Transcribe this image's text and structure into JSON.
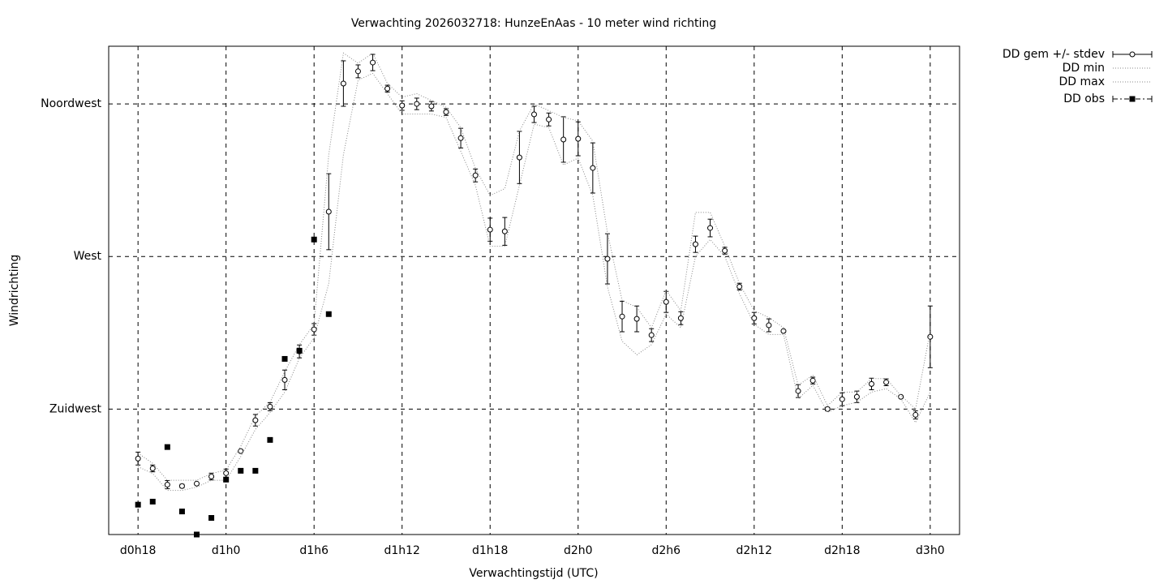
{
  "chart_data": {
    "type": "line",
    "title": "Verwachting 2026032718: HunzeEnAas - 10 meter wind richting",
    "xlabel": "Verwachtingstijd (UTC)",
    "ylabel": "Windrichting",
    "xlim": [
      16,
      74
    ],
    "ylim": [
      188,
      332
    ],
    "xticks": [
      {
        "value": 18,
        "label": "d0h18"
      },
      {
        "value": 24,
        "label": "d1h0"
      },
      {
        "value": 30,
        "label": "d1h6"
      },
      {
        "value": 36,
        "label": "d1h12"
      },
      {
        "value": 42,
        "label": "d1h18"
      },
      {
        "value": 48,
        "label": "d2h0"
      },
      {
        "value": 54,
        "label": "d2h6"
      },
      {
        "value": 60,
        "label": "d2h12"
      },
      {
        "value": 66,
        "label": "d2h18"
      },
      {
        "value": 72,
        "label": "d3h0"
      }
    ],
    "yticks": [
      {
        "value": 225,
        "label": "Zuidwest"
      },
      {
        "value": 270,
        "label": "West"
      },
      {
        "value": 315,
        "label": "Noordwest"
      }
    ],
    "grid": true,
    "legend": "outside-top-right",
    "x": [
      18,
      19,
      20,
      21,
      22,
      23,
      24,
      25,
      26,
      27,
      28,
      29,
      30,
      31,
      32,
      33,
      34,
      35,
      36,
      37,
      38,
      39,
      40,
      41,
      42,
      43,
      44,
      45,
      46,
      47,
      48,
      49,
      50,
      51,
      52,
      53,
      54,
      55,
      56,
      57,
      58,
      59,
      60,
      61,
      62,
      63,
      64,
      65,
      66,
      67,
      68,
      69,
      70,
      71,
      72
    ],
    "series": [
      {
        "name": "DD gem +/- stdev",
        "color": "#000000",
        "style": "errorbars",
        "values": [
          210.4,
          207.5,
          202.7,
          202.3,
          203.0,
          205.1,
          206.1,
          212.6,
          221.7,
          225.7,
          233.6,
          242.0,
          248.5,
          283.2,
          321.0,
          324.6,
          327.2,
          319.5,
          314.5,
          315.0,
          314.3,
          312.6,
          304.9,
          293.9,
          277.9,
          277.4,
          299.2,
          311.9,
          310.4,
          304.5,
          304.7,
          296.1,
          269.3,
          252.3,
          251.6,
          246.8,
          256.6,
          251.8,
          273.6,
          278.4,
          271.7,
          261.1,
          251.8,
          249.7,
          248.0,
          230.3,
          233.4,
          225.0,
          227.9,
          228.6,
          232.4,
          232.9,
          228.6,
          223.3,
          246.3
        ],
        "errors": [
          1.9,
          1.0,
          1.2,
          0.5,
          0.3,
          1.0,
          1.2,
          0.3,
          1.7,
          1.2,
          2.9,
          1.9,
          1.7,
          11.2,
          6.7,
          1.9,
          2.4,
          1.0,
          1.4,
          1.7,
          1.4,
          1.0,
          2.9,
          1.9,
          3.4,
          4.1,
          7.7,
          2.4,
          1.9,
          6.7,
          5.0,
          7.4,
          7.4,
          4.5,
          3.8,
          1.9,
          3.1,
          1.9,
          2.4,
          2.6,
          1.0,
          1.0,
          1.7,
          1.9,
          0.2,
          1.9,
          1.0,
          0.5,
          1.9,
          1.7,
          1.7,
          1.0,
          0.2,
          1.2,
          9.1
        ]
      },
      {
        "name": "DD min",
        "color": "#888888",
        "style": "dotted",
        "values": [
          208,
          206,
          201,
          201,
          202,
          204,
          204,
          211,
          219,
          224,
          230,
          240,
          246,
          262,
          300,
          322,
          324,
          318,
          312,
          312,
          312,
          311,
          301,
          291,
          273,
          273,
          291,
          309,
          308,
          297,
          299,
          288,
          261,
          245,
          241,
          244,
          253,
          249,
          270,
          275,
          270,
          259,
          250,
          247,
          247,
          228,
          232,
          224,
          226,
          227,
          230,
          231,
          228,
          221,
          230
        ]
      },
      {
        "name": "DD max",
        "color": "#888888",
        "style": "dotted",
        "values": [
          212,
          209,
          204,
          204,
          204,
          206,
          207,
          214,
          223,
          227,
          236,
          244,
          250,
          300,
          330,
          327,
          330,
          321,
          317,
          318,
          316,
          314,
          308,
          296,
          288,
          290,
          307,
          315,
          313,
          311,
          310,
          304,
          277,
          257,
          255,
          249,
          260,
          254,
          283,
          283,
          273,
          262,
          254,
          252,
          249,
          232,
          235,
          226,
          230,
          230,
          234,
          234,
          229,
          225,
          248
        ]
      },
      {
        "name": "DD obs",
        "color": "#000000",
        "style": "points",
        "values": [
          196.8,
          197.7,
          213.8,
          194.8,
          188,
          192.9,
          204.2,
          206.8,
          206.8,
          215.9,
          239.8,
          242.2,
          275.0,
          253.0,
          null,
          null,
          null,
          null,
          null,
          null,
          null,
          null,
          null,
          null,
          null,
          null,
          null,
          null,
          null,
          null,
          null,
          null,
          null,
          null,
          null,
          null,
          null,
          null,
          null,
          null,
          null,
          null,
          null,
          null,
          null,
          null,
          null,
          null,
          null,
          null,
          null,
          null,
          null,
          null,
          null
        ]
      }
    ]
  }
}
